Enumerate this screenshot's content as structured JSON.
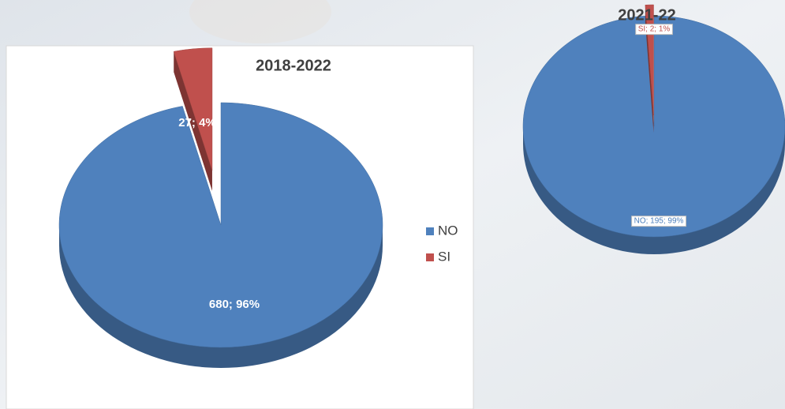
{
  "chart_data": [
    {
      "type": "pie",
      "title": "2018-2022",
      "categories": [
        "NO",
        "SI"
      ],
      "values": [
        680,
        27
      ],
      "value_labels": [
        "680; 96%",
        "27; 4%"
      ],
      "colors": [
        "#4f81bd",
        "#c0504d"
      ],
      "legend": "right"
    },
    {
      "type": "pie",
      "title": "2021-22",
      "categories": [
        "NO",
        "SI"
      ],
      "values": [
        195,
        2
      ],
      "value_labels": [
        "NO; 195; 99%",
        "SI; 2; 1%"
      ],
      "colors": [
        "#4f81bd",
        "#c0504d"
      ]
    }
  ]
}
